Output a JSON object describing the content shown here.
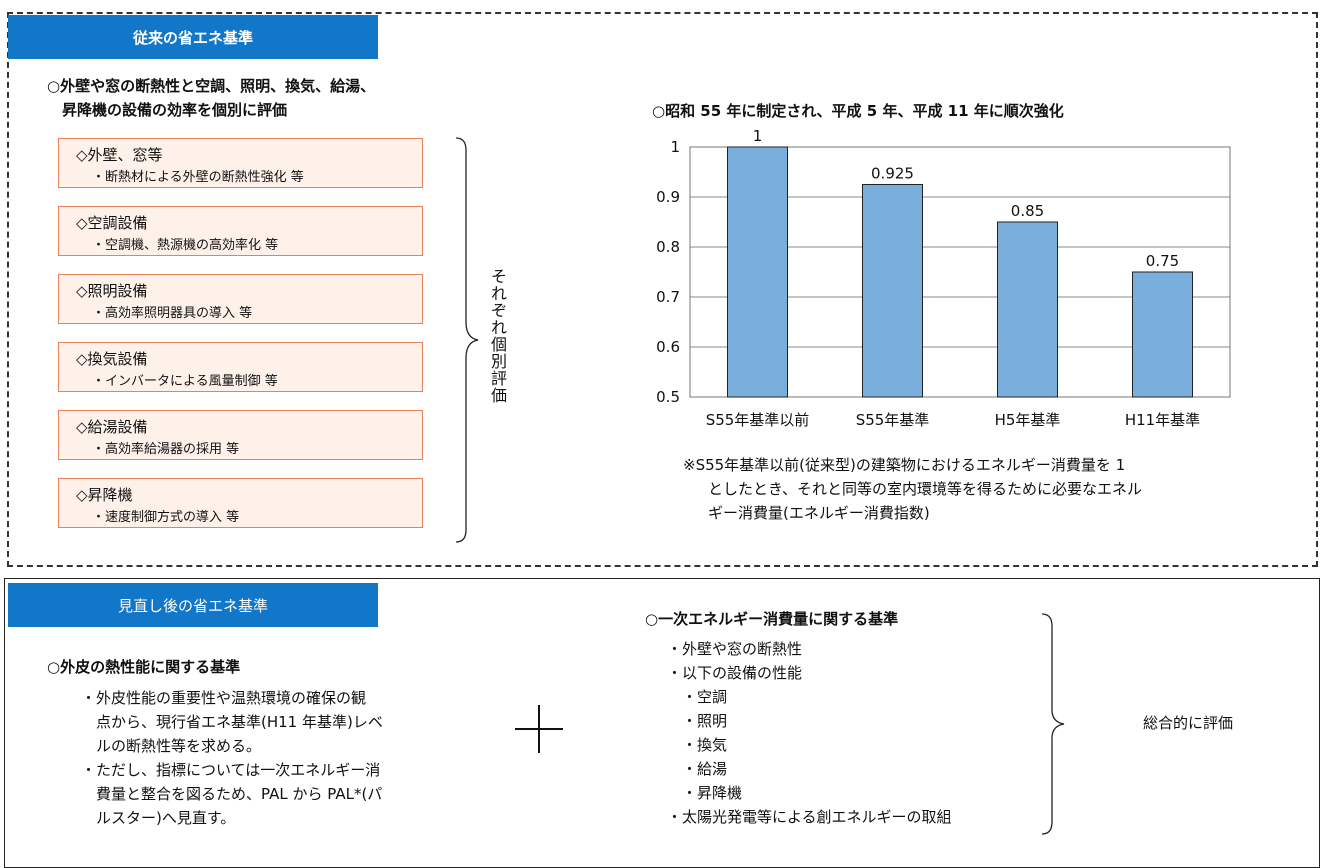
{
  "upper": {
    "header": "従来の省エネ基準",
    "intro_line1": "○外壁や窓の断熱性と空調、照明、換気、給湯、",
    "intro_line2": "昇降機の設備の効率を個別に評価",
    "items": [
      {
        "title": "◇外壁、窓等",
        "sub": "・断熱材による外壁の断熱性強化 等"
      },
      {
        "title": "◇空調設備",
        "sub": "・空調機、熱源機の高効率化 等"
      },
      {
        "title": "◇照明設備",
        "sub": "・高効率照明器具の導入 等"
      },
      {
        "title": "◇換気設備",
        "sub": "・インバータによる風量制御 等"
      },
      {
        "title": "◇給湯設備",
        "sub": "・高効率給湯器の採用 等"
      },
      {
        "title": "◇昇降機",
        "sub": "・速度制御方式の導入 等"
      }
    ],
    "vertical_label": "それぞれ個別評価",
    "chart_heading": "○昭和 55 年に制定され、平成 5 年、平成 11 年に順次強化",
    "note_line1": "※S55年基準以前(従来型)の建築物におけるエネルギー消費量を 1",
    "note_line2": "としたとき、それと同等の室内環境等を得るために必要なエネル",
    "note_line3": "ギー消費量(エネルギー消費指数)"
  },
  "chart_data": {
    "type": "bar",
    "categories": [
      "S55年基準以前",
      "S55年基準",
      "H5年基準",
      "H11年基準"
    ],
    "values": [
      1,
      0.925,
      0.85,
      0.75
    ],
    "value_labels": [
      "1",
      "0.925",
      "0.85",
      "0.75"
    ],
    "ylim": [
      0.5,
      1
    ],
    "yticks": [
      "0.5",
      "0.6",
      "0.7",
      "0.8",
      "0.9",
      "1"
    ],
    "grid": true,
    "bar_color": "#7aaedd"
  },
  "lower": {
    "header": "見直し後の省エネ基準",
    "left_heading": "○外皮の熱性能に関する基準",
    "left_lines": [
      "・外皮性能の重要性や温熱環境の確保の観",
      "点から、現行省エネ基準(H11 年基準)レベ",
      "ルの断熱性等を求める。",
      "・ただし、指標については一次エネルギー消",
      "費量と整合を図るため、PAL から PAL*(パ",
      "ルスター)へ見直す。"
    ],
    "right_heading": "○一次エネルギー消費量に関する基準",
    "right_lines": [
      "・外壁や窓の断熱性",
      "・以下の設備の性能",
      "・空調",
      "・照明",
      "・換気",
      "・給湯",
      "・昇降機",
      "・太陽光発電等による創エネルギーの取組"
    ],
    "overall": "総合的に評価"
  },
  "colors": {
    "header_blue": "#1277c8",
    "item_fill": "#fdf1ea",
    "item_border": "#e7835a",
    "bar": "#7aaedd"
  }
}
